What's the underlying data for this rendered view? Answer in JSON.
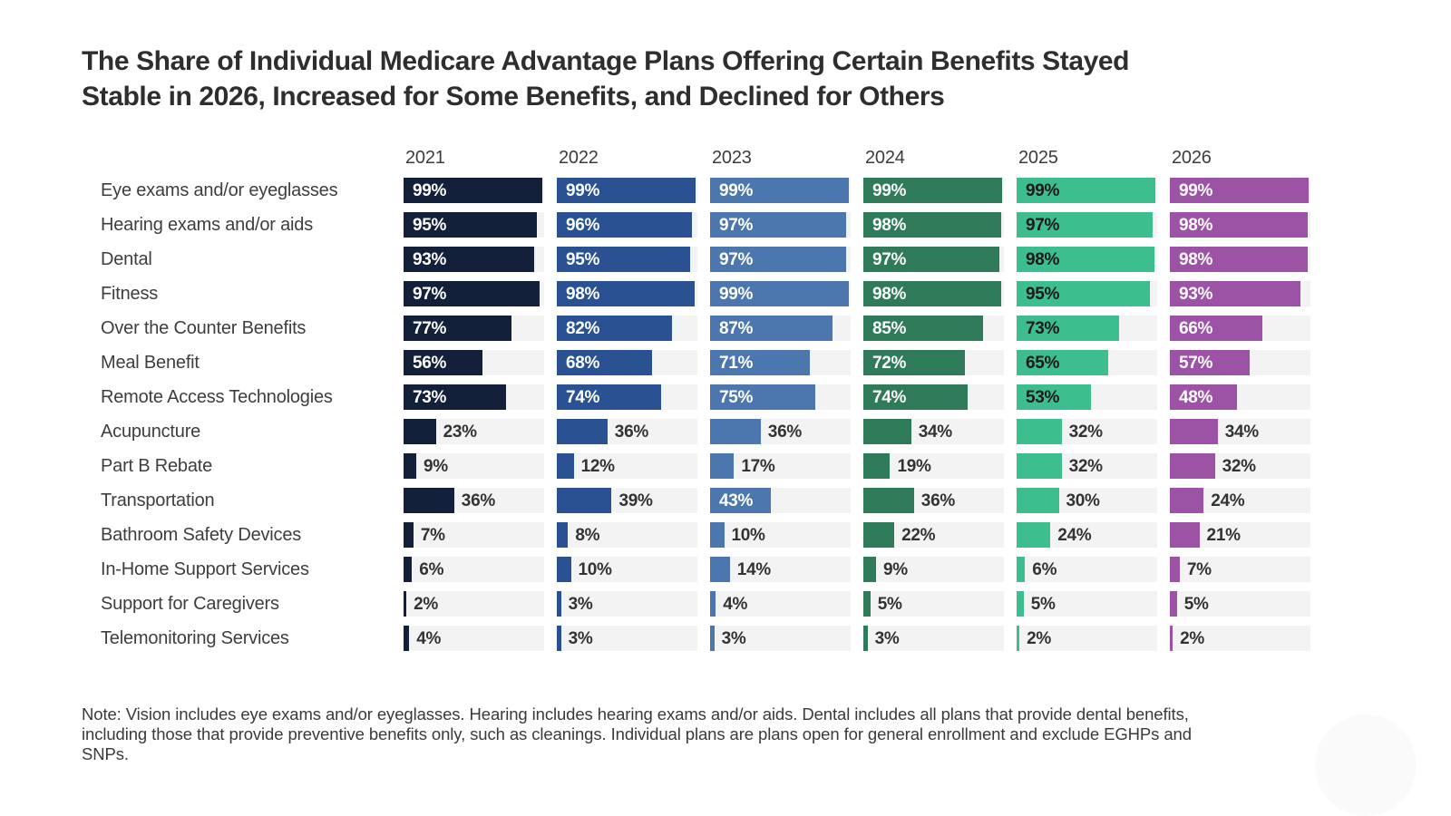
{
  "title": {
    "line1": "The Share of Individual Medicare Advantage Plans Offering Certain Benefits Stayed",
    "line2": "Stable in 2026, Increased for Some Benefits, and Declined for Others"
  },
  "note": "Note: Vision includes eye exams and/or eyeglasses. Hearing includes hearing exams and/or aids. Dental includes all plans that provide dental benefits, including those that provide preventive benefits only, such as cleanings. Individual plans are plans open for general enrollment and exclude EGHPs and SNPs.",
  "style": {
    "track_color": "#f3f3f3",
    "outside_label_color": "#333333",
    "inside_label_threshold_pct": 40
  },
  "chart_data": {
    "type": "bar",
    "orientation": "horizontal",
    "title": "The Share of Individual Medicare Advantage Plans Offering Certain Benefits Stayed Stable in 2026, Increased for Some Benefits, and Declined for Others",
    "unit": "%",
    "xlim": [
      0,
      100
    ],
    "grid": false,
    "legend_position": "column-headers-top",
    "value_labels": true,
    "categories": [
      "Eye exams and/or eyeglasses",
      "Hearing exams and/or aids",
      "Dental",
      "Fitness",
      "Over the Counter Benefits",
      "Meal Benefit",
      "Remote Access Technologies",
      "Acupuncture",
      "Part B Rebate",
      "Transportation",
      "Bathroom Safety Devices",
      "In-Home Support Services",
      "Support for Caregivers",
      "Telemonitoring Services"
    ],
    "series": [
      {
        "name": "2021",
        "color": "#12203a",
        "inside_label_color": "#ffffff",
        "values": [
          99,
          95,
          93,
          97,
          77,
          56,
          73,
          23,
          9,
          36,
          7,
          6,
          2,
          4
        ]
      },
      {
        "name": "2022",
        "color": "#2a5191",
        "inside_label_color": "#ffffff",
        "values": [
          99,
          96,
          95,
          98,
          82,
          68,
          74,
          36,
          12,
          39,
          8,
          10,
          3,
          3
        ]
      },
      {
        "name": "2023",
        "color": "#4b77ae",
        "inside_label_color": "#ffffff",
        "values": [
          99,
          97,
          97,
          99,
          87,
          71,
          75,
          36,
          17,
          43,
          10,
          14,
          4,
          3
        ]
      },
      {
        "name": "2024",
        "color": "#2f7a58",
        "inside_label_color": "#ffffff",
        "values": [
          99,
          98,
          97,
          98,
          85,
          72,
          74,
          34,
          19,
          36,
          22,
          9,
          5,
          3
        ]
      },
      {
        "name": "2025",
        "color": "#3dbe8e",
        "inside_label_color": "#1a1a1a",
        "values": [
          99,
          97,
          98,
          95,
          73,
          65,
          53,
          32,
          32,
          30,
          24,
          6,
          5,
          2
        ]
      },
      {
        "name": "2026",
        "color": "#9c52a5",
        "inside_label_color": "#ffffff",
        "values": [
          99,
          98,
          98,
          93,
          66,
          57,
          48,
          34,
          32,
          24,
          21,
          7,
          5,
          2
        ]
      }
    ]
  }
}
